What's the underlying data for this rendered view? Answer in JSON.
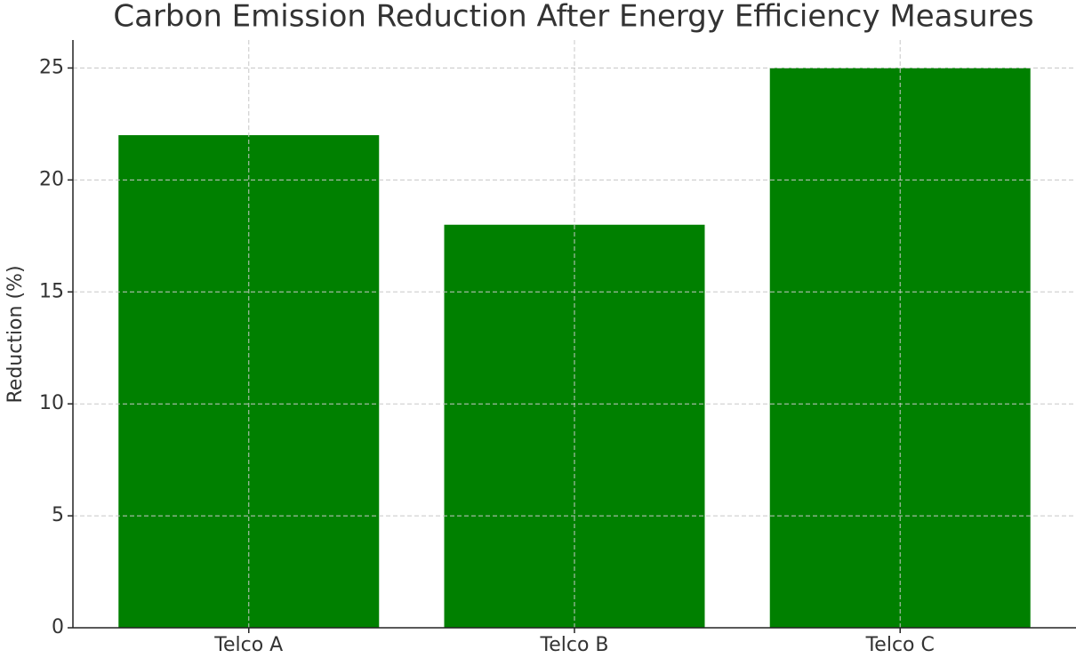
{
  "chart_data": {
    "type": "bar",
    "title": "Carbon Emission Reduction After Energy Efficiency Measures",
    "ylabel": "Reduction (%)",
    "categories": [
      "Telco A",
      "Telco B",
      "Telco C"
    ],
    "values": [
      22,
      18,
      25
    ],
    "color": "#008000",
    "ylim": [
      0,
      26.25
    ],
    "yticks": [
      0,
      5,
      10,
      15,
      20,
      25
    ],
    "grid": true
  }
}
